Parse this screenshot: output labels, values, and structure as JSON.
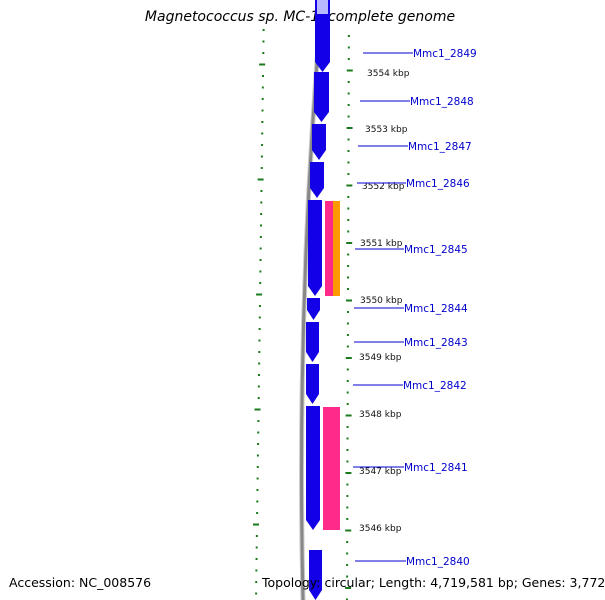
{
  "title": "Magnetococcus sp. MC-1, complete genome",
  "footer": {
    "accession": "Accession: NC_008576",
    "summary": "Topology: circular; Length: 4,719,581 bp; Genes: 3,772"
  },
  "colors": {
    "gene_cds": "#1400e6",
    "gene_cds_light": "#b8b8ff",
    "gene_pink": "#ff2a8a",
    "gene_orange": "#ff9900",
    "backbone": "#888888",
    "ticks": "#1b7a1b",
    "label_text": "#0000cc"
  },
  "kbp_labels": [
    "3554 kbp",
    "3553 kbp",
    "3552 kbp",
    "3551 kbp",
    "3550 kbp",
    "3549 kbp",
    "3548 kbp",
    "3547 kbp",
    "3546 kbp"
  ],
  "gene_labels": [
    "Mmc1_2849",
    "Mmc1_2848",
    "Mmc1_2847",
    "Mmc1_2846",
    "Mmc1_2845",
    "Mmc1_2844",
    "Mmc1_2843",
    "Mmc1_2842",
    "Mmc1_2841",
    "Mmc1_2840"
  ]
}
